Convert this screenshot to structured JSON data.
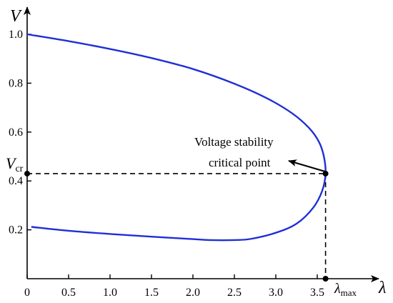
{
  "chart_data": {
    "type": "line",
    "title": "",
    "xlabel": "λ",
    "ylabel": "V",
    "xlim": [
      0,
      3.7
    ],
    "ylim": [
      0.0,
      1.05
    ],
    "x_ticks": [
      "0",
      "0.5",
      "1.0",
      "1.5",
      "2.0",
      "2.5",
      "3.0",
      "3.5"
    ],
    "y_ticks": [
      "0.2",
      "0.4",
      "0.6",
      "0.8",
      "1.0"
    ],
    "series": [
      {
        "color": "#1f2fd6",
        "points": [
          [
            0,
            1.0
          ],
          [
            0.5,
            0.972
          ],
          [
            1.0,
            0.94
          ],
          [
            1.5,
            0.903
          ],
          [
            2.0,
            0.858
          ],
          [
            2.5,
            0.798
          ],
          [
            2.9,
            0.737
          ],
          [
            3.2,
            0.676
          ],
          [
            3.4,
            0.617
          ],
          [
            3.52,
            0.56
          ],
          [
            3.58,
            0.5
          ],
          [
            3.6,
            0.43
          ],
          [
            3.56,
            0.36
          ],
          [
            3.45,
            0.29
          ],
          [
            3.25,
            0.225
          ],
          [
            3.0,
            0.188
          ],
          [
            2.7,
            0.163
          ],
          [
            2.5,
            0.158
          ],
          [
            2.2,
            0.158
          ],
          [
            2.0,
            0.162
          ],
          [
            1.5,
            0.172
          ],
          [
            1.0,
            0.183
          ],
          [
            0.5,
            0.196
          ],
          [
            0.05,
            0.212
          ]
        ]
      }
    ],
    "critical_point": {
      "x": 3.6,
      "y": 0.43
    },
    "annotation": {
      "line1": "Voltage stability",
      "line2": "critical point"
    },
    "v_cr_label": {
      "main": "V",
      "sub": "cr"
    },
    "lambda_max_label": {
      "main": "λ",
      "sub": "max"
    }
  }
}
